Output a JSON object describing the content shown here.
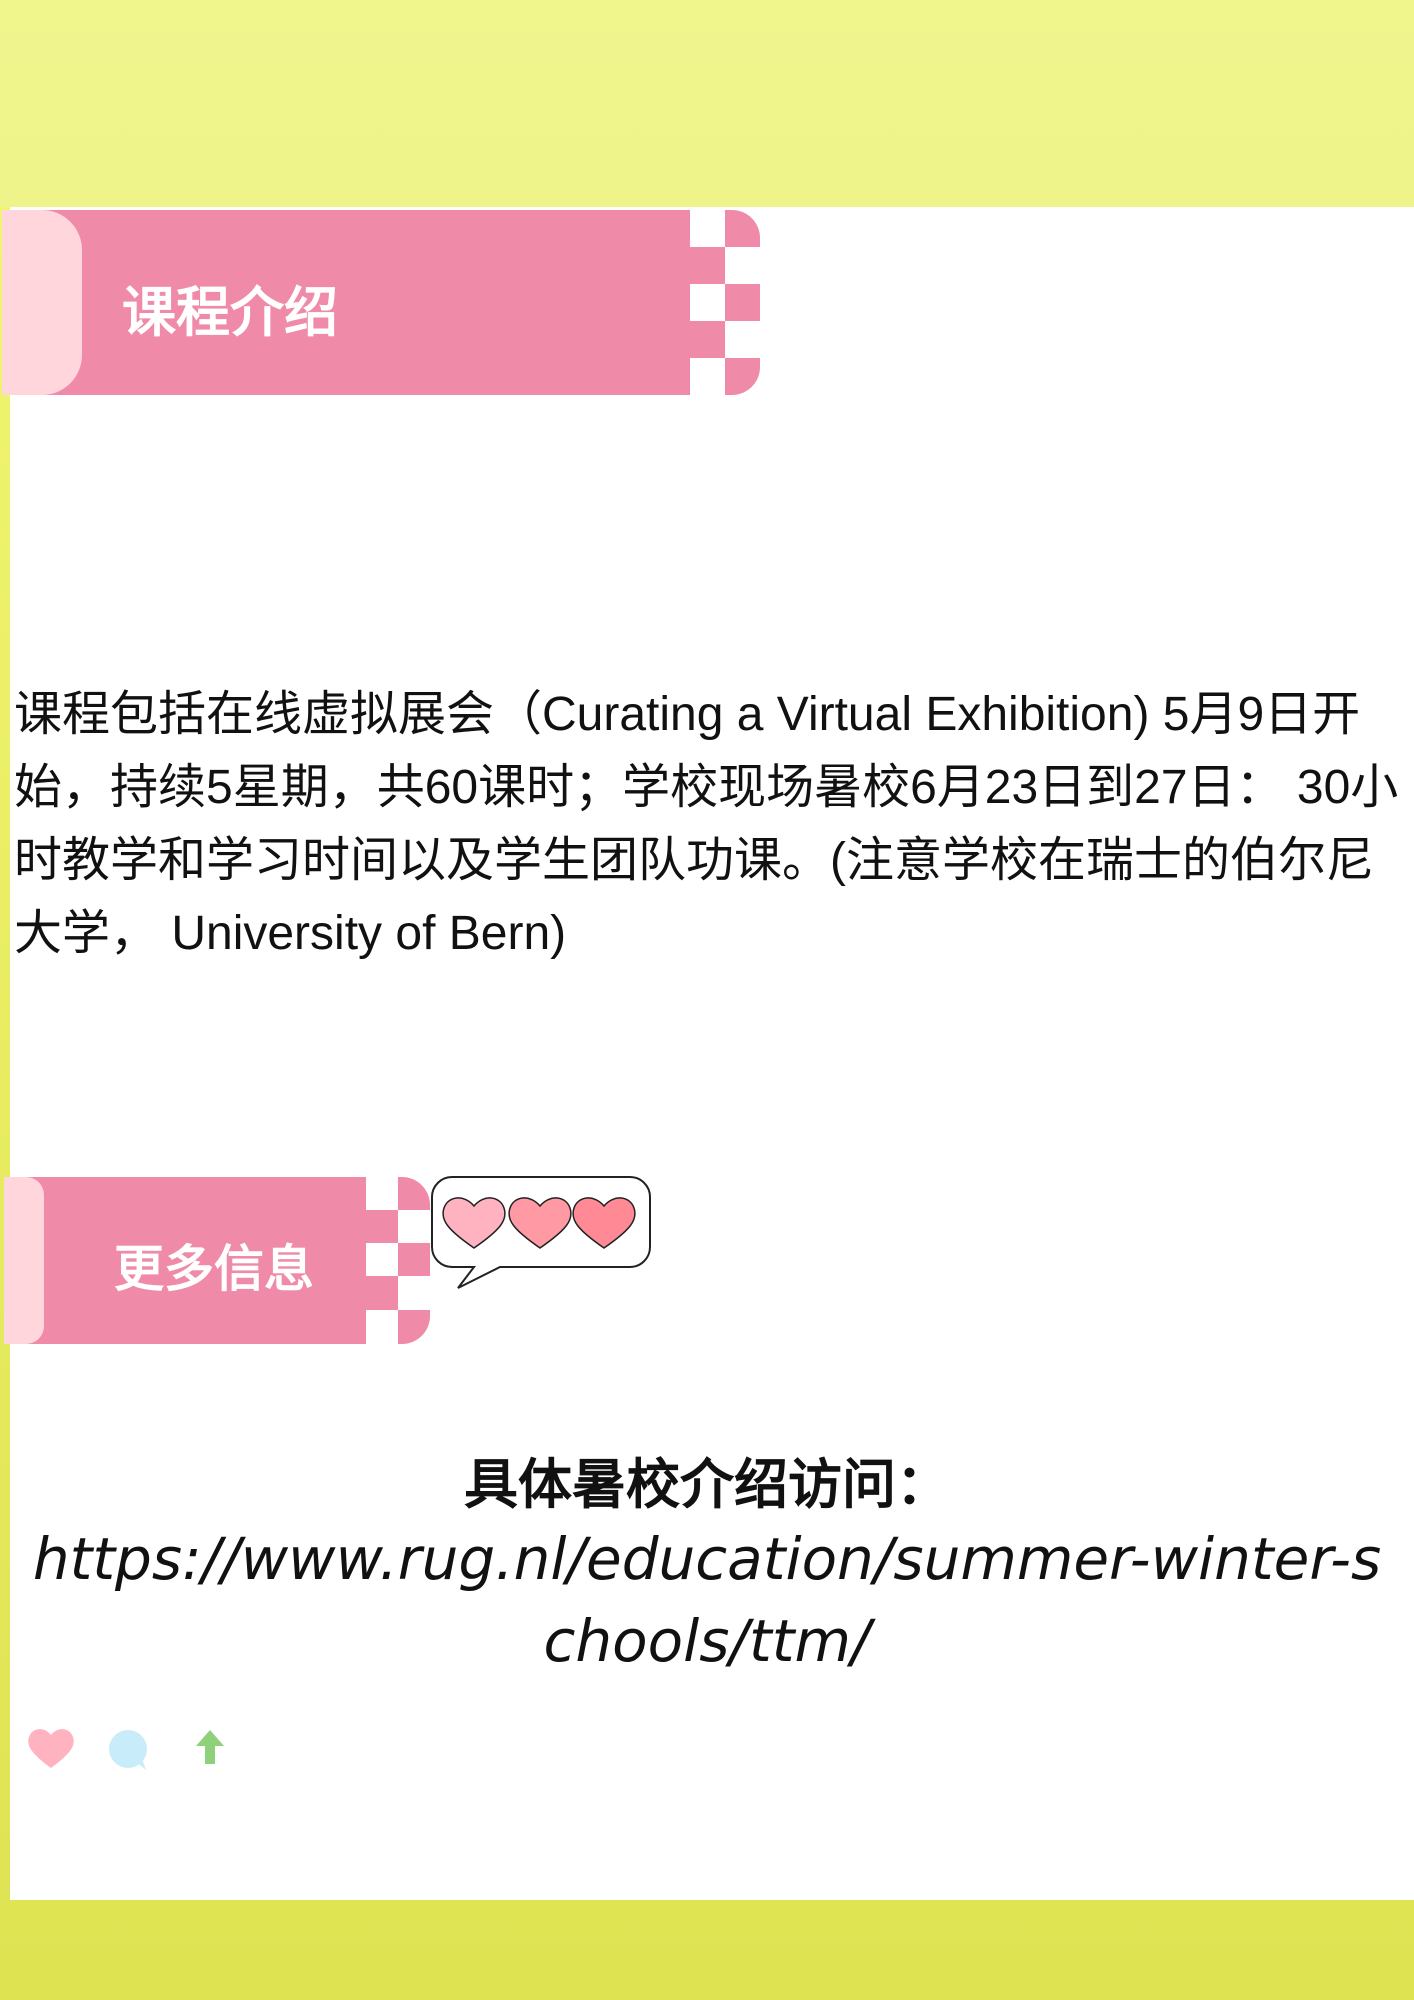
{
  "section_course": {
    "title": "课程介绍",
    "description": "课程包括在线虚拟展会（Curating a Virtual Exhibition) 5月9日开始，持续5星期，共60课时；学校现场暑校6月23日到27日： 30小时教学和学习时间以及学生团队功课。(注意学校在瑞士的伯尔尼大学， University of Bern)"
  },
  "section_more": {
    "title": "更多信息",
    "visit_label": "具体暑校介绍访问：",
    "url": "https://www.rug.nl/education/summer-winter-schools/ttm/"
  },
  "decorations": {
    "bubble_icons": [
      "heart-icon",
      "heart-icon",
      "heart-icon"
    ],
    "footer_icons": [
      "heart-icon",
      "comment-icon",
      "arrow-up-icon"
    ]
  },
  "colors": {
    "tab_pink": "#ef8ba8",
    "tab_cap": "#ffd6dc",
    "background_yellow": "#eef38a",
    "heart_pink": "#ffb3c1",
    "comment_blue": "#c9ecfb",
    "arrow_green": "#8fd17a"
  }
}
